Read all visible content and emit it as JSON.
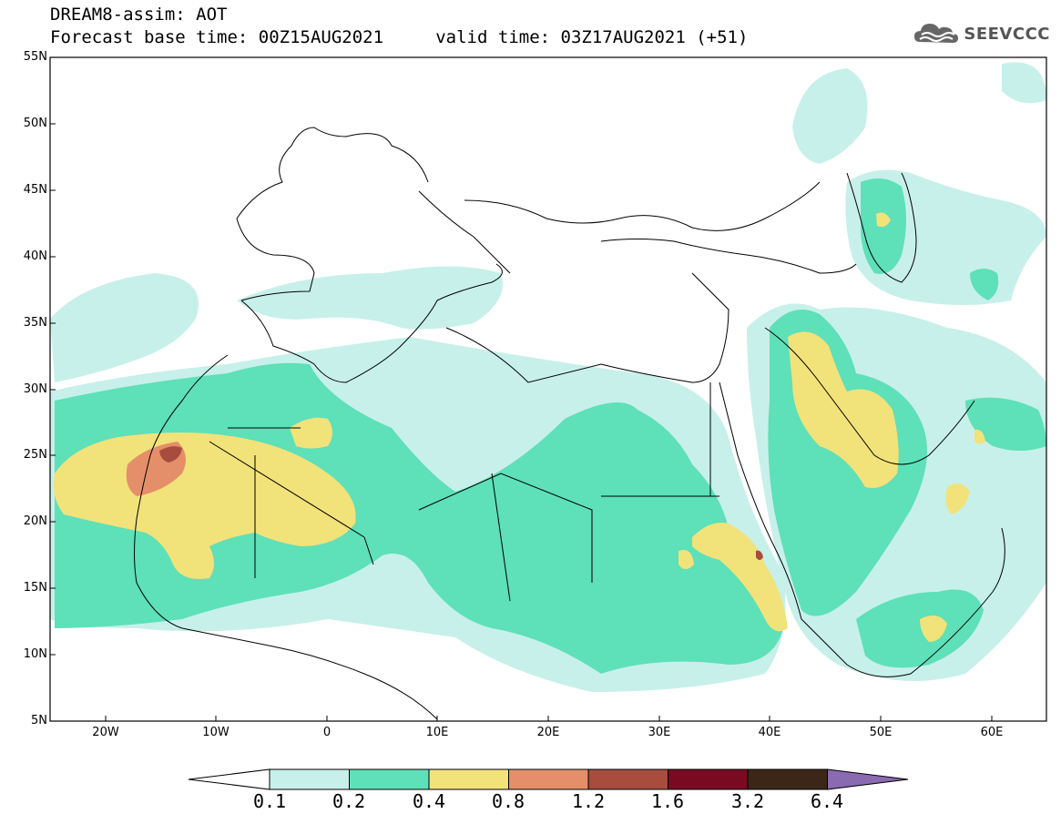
{
  "header": {
    "line1": "DREAM8-assim: AOT",
    "line2": "Forecast base time: 00Z15AUG2021     valid time: 03Z17AUG2021 (+51)"
  },
  "logo": {
    "text": "SEEVCCC",
    "icon": "cloud-logo-icon"
  },
  "map": {
    "lat_labels": [
      "55N",
      "50N",
      "45N",
      "40N",
      "35N",
      "30N",
      "25N",
      "20N",
      "15N",
      "10N",
      "5N"
    ],
    "lon_labels": [
      "20W",
      "10W",
      "0",
      "10E",
      "20E",
      "30E",
      "40E",
      "50E",
      "60E"
    ]
  },
  "colorbar": {
    "labels": [
      "0.1",
      "0.2",
      "0.4",
      "0.8",
      "1.2",
      "1.6",
      "3.2",
      "6.4"
    ],
    "colors": [
      "#ffffff",
      "#c8f0ea",
      "#5ee0b8",
      "#f2e27a",
      "#e58f6a",
      "#a84c3e",
      "#7a0a22",
      "#3c2617",
      "#8a6ab0"
    ]
  }
}
